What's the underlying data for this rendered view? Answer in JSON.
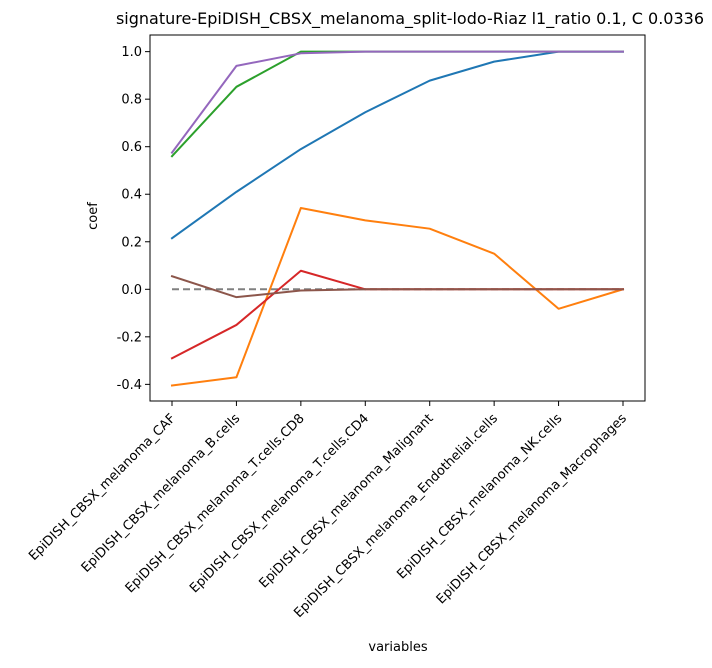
{
  "chart_data": {
    "type": "line",
    "title": "signature-EpiDISH_CBSX_melanoma_split-lodo-Riaz l1_ratio 0.1, C 0.0336",
    "xlabel": "variables",
    "ylabel": "coef",
    "ylim": [
      -0.47,
      1.07
    ],
    "yticks": [
      "-0.4",
      "-0.2",
      "0.0",
      "0.2",
      "0.4",
      "0.6",
      "0.8",
      "1.0"
    ],
    "yticks_values": [
      -0.4,
      -0.2,
      0.0,
      0.2,
      0.4,
      0.6,
      0.8,
      1.0
    ],
    "categories": [
      "EpiDISH_CBSX_melanoma_CAF",
      "EpiDISH_CBSX_melanoma_B.cells",
      "EpiDISH_CBSX_melanoma_T.cells.CD8",
      "EpiDISH_CBSX_melanoma_T.cells.CD4",
      "EpiDISH_CBSX_melanoma_Malignant",
      "EpiDISH_CBSX_melanoma_Endothelial.cells",
      "EpiDISH_CBSX_melanoma_NK.cells",
      "EpiDISH_CBSX_melanoma_Macrophages"
    ],
    "series": [
      {
        "color": "#1f77b4",
        "values": [
          0.215,
          0.41,
          0.59,
          0.745,
          0.878,
          0.958,
          1.0,
          1.0
        ]
      },
      {
        "color": "#ff7f0e",
        "values": [
          -0.405,
          -0.37,
          0.342,
          0.29,
          0.255,
          0.15,
          -0.082,
          0.0
        ]
      },
      {
        "color": "#2ca02c",
        "values": [
          0.56,
          0.852,
          1.0,
          1.0,
          1.0,
          1.0,
          1.0,
          1.0
        ]
      },
      {
        "color": "#d62728",
        "values": [
          -0.29,
          -0.15,
          0.078,
          0.0,
          0.0,
          0.0,
          0.0,
          0.0
        ]
      },
      {
        "color": "#9467bd",
        "values": [
          0.575,
          0.94,
          0.993,
          1.0,
          1.0,
          1.0,
          1.0,
          1.0
        ]
      },
      {
        "color": "#8c564b",
        "values": [
          0.055,
          -0.033,
          -0.005,
          0.0,
          0.0,
          0.0,
          0.0,
          0.0
        ]
      }
    ],
    "reference_line": {
      "y": 0.0,
      "color": "#808080",
      "style": "dashed"
    },
    "grid": false,
    "legend": "none"
  }
}
